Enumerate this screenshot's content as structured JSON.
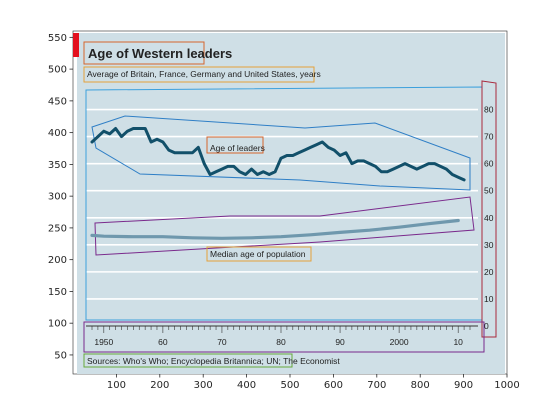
{
  "chart_data": {
    "type": "line",
    "title": "Age of Western leaders",
    "subtitle": "Average of Britain, France, Germany and United States, years",
    "source": "Sources: Who's Who; Encyclopedia Britannica; UN; The Economist",
    "outer_axes": {
      "x_ticks": [
        100,
        200,
        300,
        400,
        500,
        600,
        700,
        800,
        900,
        1000
      ],
      "y_ticks": [
        50,
        100,
        150,
        200,
        250,
        300,
        350,
        400,
        450,
        500,
        550
      ],
      "x_range": [
        0,
        1000
      ],
      "y_range": [
        560,
        20
      ],
      "y_direction": "reversed"
    },
    "inner_axes": {
      "year_ticks": [
        "1950",
        "60",
        "70",
        "80",
        "90",
        "2000",
        "10"
      ],
      "year_tick_values": [
        1950,
        1960,
        1970,
        1980,
        1990,
        2000,
        2010
      ],
      "age_ticks": [
        "0",
        "10",
        "20",
        "30",
        "40",
        "50",
        "60",
        "70",
        "80"
      ],
      "age_tick_values": [
        0,
        10,
        20,
        30,
        40,
        50,
        60,
        70,
        80
      ],
      "year_range": [
        1948,
        2012
      ],
      "age_range": [
        0,
        85
      ],
      "grid": true
    },
    "series": [
      {
        "name": "Age of leaders",
        "x": [
          1948,
          1949,
          1950,
          1951,
          1952,
          1953,
          1954,
          1955,
          1956,
          1957,
          1958,
          1959,
          1960,
          1961,
          1962,
          1963,
          1964,
          1965,
          1966,
          1967,
          1968,
          1969,
          1970,
          1971,
          1972,
          1973,
          1974,
          1975,
          1976,
          1977,
          1978,
          1979,
          1980,
          1981,
          1982,
          1983,
          1984,
          1985,
          1986,
          1987,
          1988,
          1989,
          1990,
          1991,
          1992,
          1993,
          1994,
          1995,
          1996,
          1997,
          1998,
          1999,
          2000,
          2001,
          2002,
          2003,
          2004,
          2005,
          2006,
          2007,
          2008,
          2009,
          2010,
          2011
        ],
        "y": [
          68,
          70,
          72,
          71,
          73,
          70,
          72,
          73,
          73,
          73,
          68,
          69,
          68,
          65,
          64,
          64,
          64,
          64,
          66,
          60,
          56,
          57,
          58,
          59,
          59,
          57,
          56,
          58,
          56,
          57,
          56,
          57,
          62,
          63,
          63,
          64,
          65,
          66,
          67,
          68,
          66,
          65,
          63,
          64,
          60,
          61,
          61,
          60,
          59,
          57,
          57,
          58,
          59,
          60,
          59,
          58,
          59,
          60,
          60,
          59,
          58,
          56,
          55,
          54
        ]
      },
      {
        "name": "Median age of population",
        "x": [
          1948,
          1950,
          1955,
          1960,
          1965,
          1970,
          1975,
          1980,
          1985,
          1990,
          1995,
          2000,
          2005,
          2010
        ],
        "y": [
          33.5,
          33.2,
          33.0,
          33.0,
          32.6,
          32.4,
          32.6,
          33.0,
          33.7,
          34.6,
          35.4,
          36.5,
          37.8,
          39.0
        ]
      }
    ],
    "annotations": {
      "leaders_label": "Age of leaders",
      "population_label": "Median age of population"
    },
    "colors": {
      "panel_bg": "#cfdfe6",
      "leaders_line": "#12506a",
      "population_line": "#6f98ad",
      "gridline": "#ffffff",
      "red_tag": "#e3101e",
      "title_box": "#d6642c",
      "subtitle_box": "#e5a13a",
      "leaders_envelope": "#2f7fc6",
      "population_envelope": "#7a2a8c",
      "plot_box": "#3ca0dc",
      "right_axis_box": "#a8283c",
      "xaxis_box": "#7a2a8c",
      "source_box": "#67a83c"
    }
  }
}
